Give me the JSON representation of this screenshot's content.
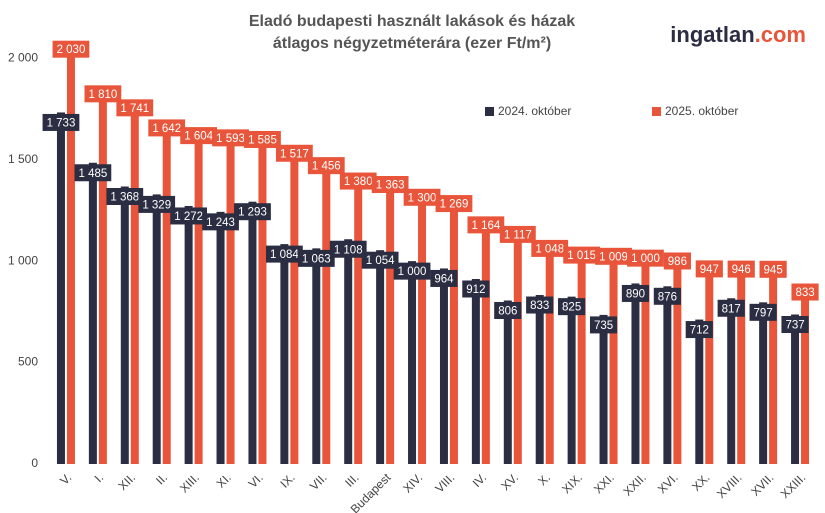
{
  "chart_data": {
    "type": "bar",
    "title_lines": [
      "Eladó budapesti használt lakások és házak",
      "átlagos négyzetméterára (ezer Ft/m²)"
    ],
    "logo": {
      "name": "ingatlan",
      "suffix": ".com"
    },
    "categories": [
      "V.",
      "I.",
      "XII.",
      "II.",
      "XIII.",
      "XI.",
      "VI.",
      "IX.",
      "VII.",
      "III.",
      "Budapest",
      "XIV.",
      "VIII.",
      "IV.",
      "XV.",
      "X.",
      "XIX.",
      "XXI.",
      "XXII.",
      "XVI.",
      "XX.",
      "XVIII.",
      "XVII.",
      "XXIII."
    ],
    "series": [
      {
        "name": "2024. október",
        "color": "#2b2d42",
        "values": [
          1733,
          1485,
          1368,
          1329,
          1272,
          1243,
          1293,
          1084,
          1063,
          1108,
          1054,
          1000,
          964,
          912,
          806,
          833,
          825,
          735,
          890,
          876,
          712,
          817,
          797,
          737
        ],
        "value_labels": [
          "1 733",
          "1 485",
          "1 368",
          "1 329",
          "1 272",
          "1 243",
          "1 293",
          "1 084",
          "1 063",
          "1 108",
          "1 054",
          "1 000",
          "964",
          "912",
          "806",
          "833",
          "825",
          "735",
          "890",
          "876",
          "712",
          "817",
          "797",
          "737"
        ]
      },
      {
        "name": "2025. október",
        "color": "#e8553a",
        "values": [
          2030,
          1810,
          1741,
          1642,
          1604,
          1593,
          1585,
          1517,
          1456,
          1380,
          1363,
          1300,
          1269,
          1164,
          1117,
          1048,
          1015,
          1009,
          1000,
          986,
          947,
          946,
          945,
          833
        ],
        "value_labels": [
          "2 030",
          "1 810",
          "1 741",
          "1 642",
          "1 604",
          "1 593",
          "1 585",
          "1 517",
          "1 456",
          "1 380",
          "1 363",
          "1 300",
          "1 269",
          "1 164",
          "1 117",
          "1 048",
          "1 015",
          "1 009",
          "1 000",
          "986",
          "947",
          "946",
          "945",
          "833"
        ]
      }
    ],
    "ylim": [
      0,
      2100
    ],
    "yticks": [
      0,
      500,
      {
        "value": 1000,
        "label": "1 000"
      },
      {
        "value": 1500,
        "label": "1 500"
      },
      {
        "value": 2000,
        "label": "2 000"
      }
    ],
    "grid": false,
    "legend": "upper right"
  }
}
